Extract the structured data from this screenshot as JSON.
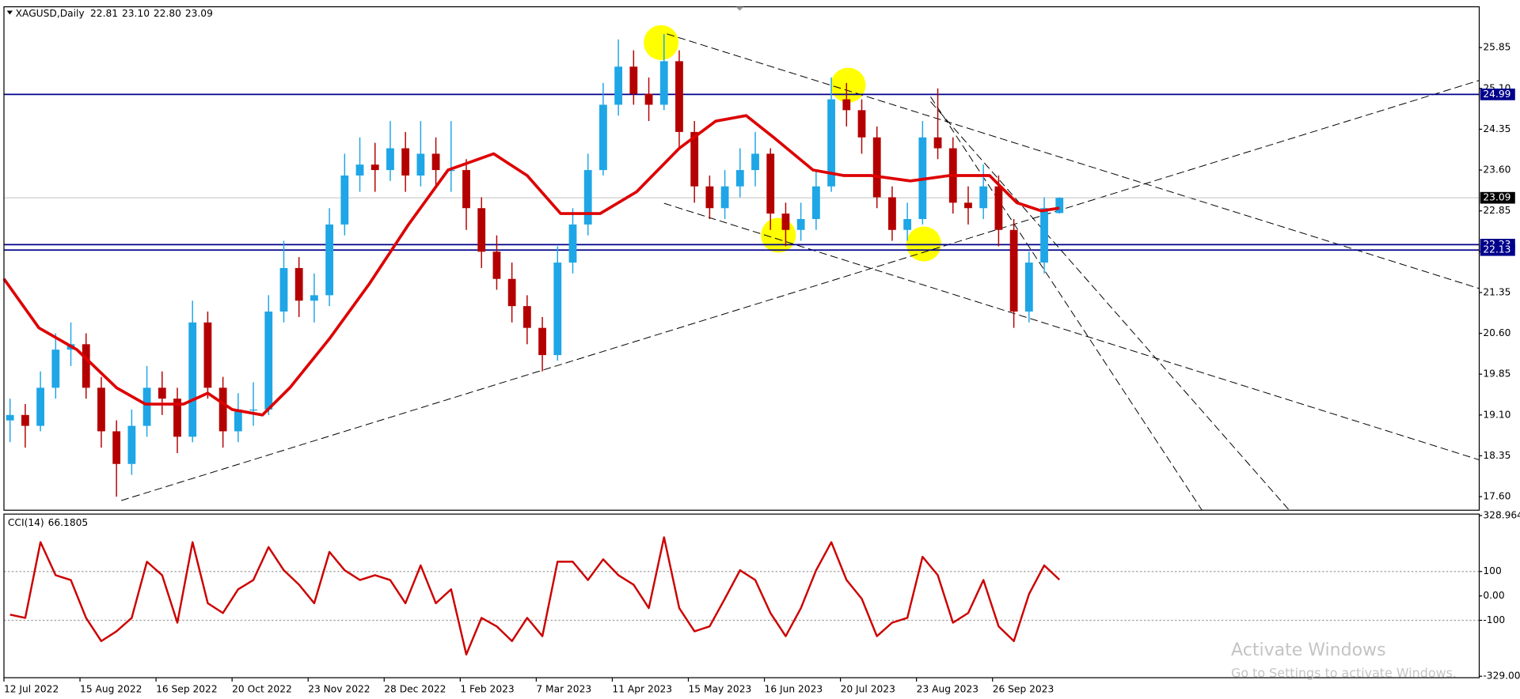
{
  "header": {
    "symbol": "XAGUSD,Daily",
    "ohlc": [
      "22.81",
      "23.10",
      "22.80",
      "23.09"
    ]
  },
  "watermark": {
    "title": "Activate Windows",
    "text": "Go to Settings to activate Windows."
  },
  "chart_data": [
    {
      "type": "candlestick",
      "up_color": "#1ea6e6",
      "down_color": "#b40000",
      "xlim": [
        0,
        485
      ],
      "xticks": [
        {
          "value": 0,
          "label": "12 Jul 2022"
        },
        {
          "value": 25,
          "label": "15 Aug 2022"
        },
        {
          "value": 50,
          "label": "16 Sep 2022"
        },
        {
          "value": 75,
          "label": "20 Oct 2022"
        },
        {
          "value": 100,
          "label": "23 Nov 2022"
        },
        {
          "value": 125,
          "label": "28 Dec 2022"
        },
        {
          "value": 150,
          "label": "1 Feb 2023"
        },
        {
          "value": 175,
          "label": "7 Mar 2023"
        },
        {
          "value": 200,
          "label": "11 Apr 2023"
        },
        {
          "value": 225,
          "label": "15 May 2023"
        },
        {
          "value": 250,
          "label": "16 Jun 2023"
        },
        {
          "value": 275,
          "label": "20 Jul 2023"
        },
        {
          "value": 300,
          "label": "23 Aug 2023"
        },
        {
          "value": 325,
          "label": "26 Sep 2023"
        }
      ],
      "ylim": [
        17.35,
        26.6
      ],
      "yticks": [
        25.85,
        {
          "value": 25.1,
          "label": "25.10"
        },
        24.35,
        {
          "value": 23.6,
          "label": "23.60"
        },
        22.85,
        {
          "value": 22.1,
          "label": "22.10"
        },
        21.35,
        {
          "value": 20.6,
          "label": "20.60"
        },
        19.85,
        {
          "value": 19.1,
          "label": "19.10"
        },
        18.35,
        {
          "value": 17.6,
          "label": "17.60"
        }
      ],
      "x": [
        2,
        7,
        12,
        17,
        22,
        27,
        32,
        37,
        42,
        47,
        52,
        57,
        62,
        67,
        72,
        77,
        82,
        87,
        92,
        97,
        102,
        107,
        112,
        117,
        122,
        127,
        132,
        137,
        142,
        147,
        152,
        157,
        162,
        167,
        172,
        177,
        182,
        187,
        192,
        197,
        202,
        207,
        212,
        217,
        222,
        227,
        232,
        237,
        242,
        247,
        252,
        257,
        262,
        267,
        272,
        277,
        282,
        287,
        292,
        297,
        302,
        307,
        312,
        317,
        322,
        327,
        332,
        337,
        342,
        347
      ],
      "ohlc": [
        [
          19.0,
          19.4,
          18.6,
          19.1
        ],
        [
          19.1,
          19.3,
          18.5,
          18.9
        ],
        [
          18.9,
          19.9,
          18.8,
          19.6
        ],
        [
          19.6,
          20.6,
          19.4,
          20.3
        ],
        [
          20.3,
          20.8,
          20.0,
          20.4
        ],
        [
          20.4,
          20.6,
          19.4,
          19.6
        ],
        [
          19.6,
          19.8,
          18.5,
          18.8
        ],
        [
          18.8,
          19.0,
          17.6,
          18.2
        ],
        [
          18.2,
          19.2,
          18.0,
          18.9
        ],
        [
          18.9,
          20.0,
          18.7,
          19.6
        ],
        [
          19.6,
          19.9,
          19.1,
          19.4
        ],
        [
          19.4,
          19.6,
          18.4,
          18.7
        ],
        [
          18.7,
          21.2,
          18.6,
          20.8
        ],
        [
          20.8,
          21.0,
          19.4,
          19.6
        ],
        [
          19.6,
          19.8,
          18.5,
          18.8
        ],
        [
          18.8,
          19.5,
          18.6,
          19.2
        ],
        [
          19.2,
          19.7,
          18.9,
          19.2
        ],
        [
          19.2,
          21.3,
          19.1,
          21.0
        ],
        [
          21.0,
          22.3,
          20.8,
          21.8
        ],
        [
          21.8,
          22.0,
          20.9,
          21.2
        ],
        [
          21.2,
          21.7,
          20.8,
          21.3
        ],
        [
          21.3,
          22.9,
          21.1,
          22.6
        ],
        [
          22.6,
          23.9,
          22.4,
          23.5
        ],
        [
          23.5,
          24.2,
          23.2,
          23.7
        ],
        [
          23.7,
          24.1,
          23.2,
          23.6
        ],
        [
          23.6,
          24.5,
          23.4,
          24.0
        ],
        [
          24.0,
          24.3,
          23.2,
          23.5
        ],
        [
          23.5,
          24.5,
          23.3,
          23.9
        ],
        [
          23.9,
          24.2,
          23.3,
          23.6
        ],
        [
          23.6,
          24.5,
          23.2,
          23.6
        ],
        [
          23.6,
          23.8,
          22.5,
          22.9
        ],
        [
          22.9,
          23.1,
          21.8,
          22.1
        ],
        [
          22.1,
          22.4,
          21.4,
          21.6
        ],
        [
          21.6,
          21.9,
          20.8,
          21.1
        ],
        [
          21.1,
          21.3,
          20.4,
          20.7
        ],
        [
          20.7,
          20.9,
          19.9,
          20.2
        ],
        [
          20.2,
          22.2,
          20.1,
          21.9
        ],
        [
          21.9,
          22.9,
          21.7,
          22.6
        ],
        [
          22.6,
          23.9,
          22.4,
          23.6
        ],
        [
          23.6,
          25.2,
          23.5,
          24.8
        ],
        [
          24.8,
          26.0,
          24.6,
          25.5
        ],
        [
          25.5,
          25.8,
          24.8,
          25.0
        ],
        [
          25.0,
          25.3,
          24.5,
          24.8
        ],
        [
          24.8,
          26.1,
          24.7,
          25.6
        ],
        [
          25.6,
          25.8,
          24.0,
          24.3
        ],
        [
          24.3,
          24.5,
          23.0,
          23.3
        ],
        [
          23.3,
          23.5,
          22.7,
          22.9
        ],
        [
          22.9,
          23.6,
          22.7,
          23.3
        ],
        [
          23.3,
          24.0,
          23.1,
          23.6
        ],
        [
          23.6,
          24.3,
          23.3,
          23.9
        ],
        [
          23.9,
          24.0,
          22.5,
          22.8
        ],
        [
          22.8,
          23.0,
          22.2,
          22.5
        ],
        [
          22.5,
          23.0,
          22.3,
          22.7
        ],
        [
          22.7,
          23.6,
          22.5,
          23.3
        ],
        [
          23.3,
          25.3,
          23.2,
          24.9
        ],
        [
          24.9,
          25.2,
          24.4,
          24.7
        ],
        [
          24.7,
          24.9,
          23.9,
          24.2
        ],
        [
          24.2,
          24.4,
          22.9,
          23.1
        ],
        [
          23.1,
          23.3,
          22.3,
          22.5
        ],
        [
          22.5,
          23.0,
          22.3,
          22.7
        ],
        [
          22.7,
          24.5,
          22.6,
          24.2
        ],
        [
          24.2,
          25.1,
          23.8,
          24.0
        ],
        [
          24.0,
          24.2,
          22.8,
          23.0
        ],
        [
          23.0,
          23.3,
          22.6,
          22.9
        ],
        [
          22.9,
          23.7,
          22.7,
          23.3
        ],
        [
          23.3,
          23.5,
          22.2,
          22.5
        ],
        [
          22.5,
          22.7,
          20.7,
          21.0
        ],
        [
          21.0,
          22.1,
          20.8,
          21.9
        ],
        [
          21.9,
          23.1,
          21.7,
          22.9
        ],
        [
          22.81,
          23.1,
          22.8,
          23.09
        ]
      ],
      "ma": {
        "color": "#dd0000",
        "x": [
          0,
          11.5,
          24,
          37,
          46.5,
          59,
          67,
          75,
          85,
          94,
          107,
          120,
          133,
          146,
          161,
          172,
          183,
          196,
          208,
          222,
          234,
          244,
          253,
          266,
          276,
          285,
          298,
          311,
          324,
          333,
          341,
          347
        ],
        "values": [
          21.6,
          20.7,
          20.3,
          19.6,
          19.3,
          19.3,
          19.5,
          19.2,
          19.1,
          19.6,
          20.5,
          21.5,
          22.6,
          23.6,
          23.9,
          23.5,
          22.8,
          22.8,
          23.2,
          24.0,
          24.5,
          24.6,
          24.2,
          23.6,
          23.5,
          23.5,
          23.4,
          23.5,
          23.5,
          23.0,
          22.85,
          22.9
        ]
      },
      "levels": [
        24.99,
        22.23,
        22.13
      ],
      "level_color": "#00008b",
      "last_price": 23.09
    },
    {
      "type": "line",
      "title": "CCI(14)",
      "color": "#cc0000",
      "xlim": [
        0,
        485
      ],
      "ylim": [
        -335,
        335
      ],
      "yticks": [
        328.964,
        100,
        {
          "value": 0,
          "label": "0.00"
        },
        -100,
        -329.007
      ],
      "levels": [
        100,
        -100
      ],
      "x": [
        2,
        7,
        12,
        17,
        22,
        27,
        32,
        37,
        42,
        47,
        52,
        57,
        62,
        67,
        72,
        77,
        82,
        87,
        92,
        97,
        102,
        107,
        112,
        117,
        122,
        127,
        132,
        137,
        142,
        147,
        152,
        157,
        162,
        167,
        172,
        177,
        182,
        187,
        192,
        197,
        202,
        207,
        212,
        217,
        222,
        227,
        232,
        237,
        242,
        247,
        252,
        257,
        262,
        267,
        272,
        277,
        282,
        287,
        292,
        297,
        302,
        307,
        312,
        317,
        322,
        327,
        332,
        337,
        342,
        347
      ],
      "values": [
        -77,
        -90,
        220,
        85,
        65,
        -90,
        -185,
        -145,
        -90,
        140,
        85,
        -110,
        220,
        -30,
        -70,
        27,
        65,
        200,
        105,
        46,
        -30,
        180,
        105,
        65,
        85,
        65,
        -30,
        125,
        -30,
        27,
        -240,
        -90,
        -125,
        -185,
        -90,
        -165,
        140,
        140,
        65,
        150,
        85,
        46,
        -50,
        240,
        -50,
        -145,
        -125,
        -12,
        105,
        65,
        -70,
        -165,
        -50,
        105,
        220,
        65,
        -12,
        -165,
        -110,
        -90,
        160,
        85,
        -110,
        -70,
        65,
        -125,
        -185,
        8,
        125,
        66.1805
      ]
    }
  ]
}
